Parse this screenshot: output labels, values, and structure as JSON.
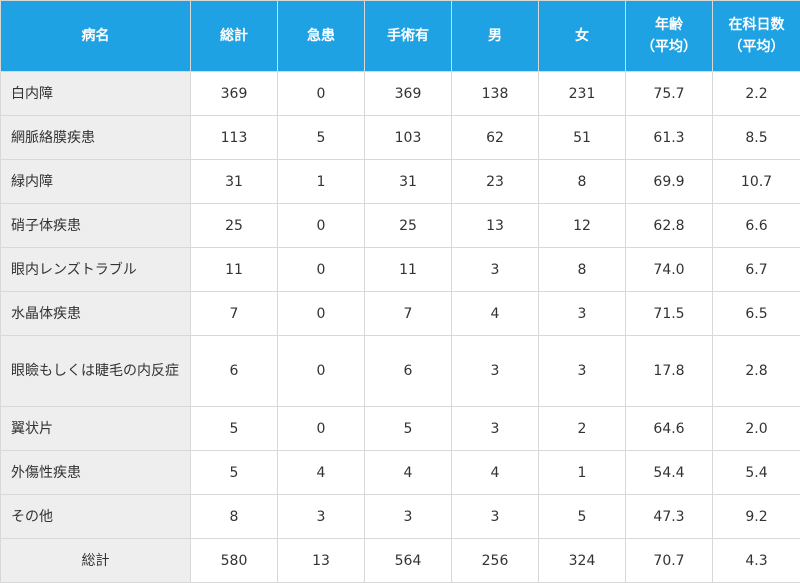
{
  "headers": {
    "name": "病名",
    "total": "総計",
    "emergency": "急患",
    "surgery": "手術有",
    "male": "男",
    "female": "女",
    "age_l1": "年齢",
    "age_l2": "（平均）",
    "days_l1": "在科日数",
    "days_l2": "（平均）"
  },
  "rows": [
    {
      "name": "白内障",
      "total": "369",
      "emergency": "0",
      "surgery": "369",
      "male": "138",
      "female": "231",
      "age": "75.7",
      "days": "2.2"
    },
    {
      "name": "網脈絡膜疾患",
      "total": "113",
      "emergency": "5",
      "surgery": "103",
      "male": "62",
      "female": "51",
      "age": "61.3",
      "days": "8.5"
    },
    {
      "name": "緑内障",
      "total": "31",
      "emergency": "1",
      "surgery": "31",
      "male": "23",
      "female": "8",
      "age": "69.9",
      "days": "10.7"
    },
    {
      "name": "硝子体疾患",
      "total": "25",
      "emergency": "0",
      "surgery": "25",
      "male": "13",
      "female": "12",
      "age": "62.8",
      "days": "6.6"
    },
    {
      "name": "眼内レンズトラブル",
      "total": "11",
      "emergency": "0",
      "surgery": "11",
      "male": "3",
      "female": "8",
      "age": "74.0",
      "days": "6.7"
    },
    {
      "name": "水晶体疾患",
      "total": "7",
      "emergency": "0",
      "surgery": "7",
      "male": "4",
      "female": "3",
      "age": "71.5",
      "days": "6.5"
    },
    {
      "name": "眼瞼もしくは睫毛の内反症",
      "total": "6",
      "emergency": "0",
      "surgery": "6",
      "male": "3",
      "female": "3",
      "age": "17.8",
      "days": "2.8"
    },
    {
      "name": "翼状片",
      "total": "5",
      "emergency": "0",
      "surgery": "5",
      "male": "3",
      "female": "2",
      "age": "64.6",
      "days": "2.0"
    },
    {
      "name": "外傷性疾患",
      "total": "5",
      "emergency": "4",
      "surgery": "4",
      "male": "4",
      "female": "1",
      "age": "54.4",
      "days": "5.4"
    },
    {
      "name": "その他",
      "total": "8",
      "emergency": "3",
      "surgery": "3",
      "male": "3",
      "female": "5",
      "age": "47.3",
      "days": "9.2"
    }
  ],
  "total_row": {
    "name": "総計",
    "total": "580",
    "emergency": "13",
    "surgery": "564",
    "male": "256",
    "female": "324",
    "age": "70.7",
    "days": "4.3"
  }
}
